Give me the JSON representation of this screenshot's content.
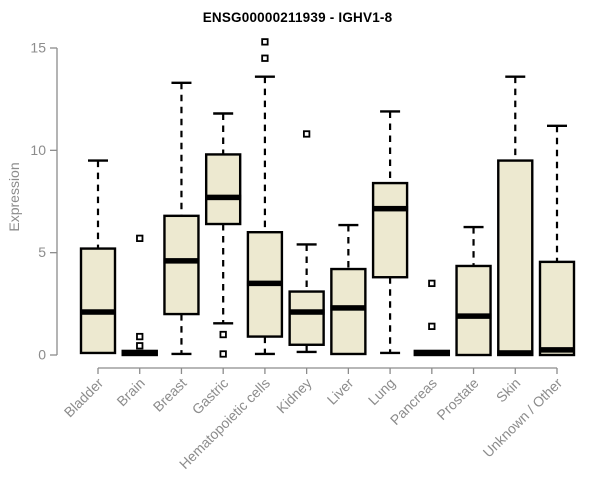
{
  "colors": {
    "background": "#ffffff",
    "box_fill": "#ede9d0",
    "box_stroke": "#000000",
    "median": "#000000",
    "outlier_fill": "#ffffff",
    "axis": "#8c8c8c",
    "title": "#000000"
  },
  "chart_data": {
    "type": "boxplot",
    "title": "ENSG00000211939 - IGHV1-8",
    "xlabel": "",
    "ylabel": "Expression",
    "ylim": [
      0,
      15
    ],
    "yticks": [
      0,
      5,
      10,
      15
    ],
    "grid": false,
    "legend": null,
    "categories": [
      "Bladder",
      "Brain",
      "Breast",
      "Gastric",
      "Hematopoietic cells",
      "Kidney",
      "Liver",
      "Lung",
      "Pancreas",
      "Prostate",
      "Skin",
      "Unknown / Other"
    ],
    "series": [
      {
        "category": "Bladder",
        "whisker_low": 0.05,
        "q1": 0.1,
        "median": 2.1,
        "q3": 5.2,
        "whisker_high": 9.5,
        "outliers": []
      },
      {
        "category": "Brain",
        "whisker_low": 0,
        "q1": 0,
        "median": 0.1,
        "q3": 0.2,
        "whisker_high": 0.2,
        "outliers": [
          5.7,
          0.9,
          0.45
        ]
      },
      {
        "category": "Breast",
        "whisker_low": 0.05,
        "q1": 2.0,
        "median": 4.6,
        "q3": 6.8,
        "whisker_high": 13.3,
        "outliers": []
      },
      {
        "category": "Gastric",
        "whisker_low": 1.55,
        "q1": 6.4,
        "median": 7.7,
        "q3": 9.8,
        "whisker_high": 11.8,
        "outliers": [
          1.0,
          0.05
        ]
      },
      {
        "category": "Hematopoietic cells",
        "whisker_low": 0.05,
        "q1": 0.9,
        "median": 3.5,
        "q3": 6.0,
        "whisker_high": 13.6,
        "outliers": [
          15.3,
          14.5
        ]
      },
      {
        "category": "Kidney",
        "whisker_low": 0.15,
        "q1": 0.5,
        "median": 2.1,
        "q3": 3.1,
        "whisker_high": 5.4,
        "outliers": [
          10.8
        ]
      },
      {
        "category": "Liver",
        "whisker_low": 0.05,
        "q1": 0.05,
        "median": 2.3,
        "q3": 4.2,
        "whisker_high": 6.35,
        "outliers": []
      },
      {
        "category": "Lung",
        "whisker_low": 0.1,
        "q1": 3.8,
        "median": 7.15,
        "q3": 8.4,
        "whisker_high": 11.9,
        "outliers": []
      },
      {
        "category": "Pancreas",
        "whisker_low": 0,
        "q1": 0,
        "median": 0.1,
        "q3": 0.2,
        "whisker_high": 0.2,
        "outliers": [
          3.5,
          1.4
        ]
      },
      {
        "category": "Prostate",
        "whisker_low": 0,
        "q1": 0,
        "median": 1.9,
        "q3": 4.35,
        "whisker_high": 6.25,
        "outliers": []
      },
      {
        "category": "Skin",
        "whisker_low": 0,
        "q1": 0,
        "median": 0.1,
        "q3": 9.5,
        "whisker_high": 13.6,
        "outliers": []
      },
      {
        "category": "Unknown / Other",
        "whisker_low": 0,
        "q1": 0,
        "median": 0.25,
        "q3": 4.55,
        "whisker_high": 11.2,
        "outliers": []
      }
    ]
  }
}
